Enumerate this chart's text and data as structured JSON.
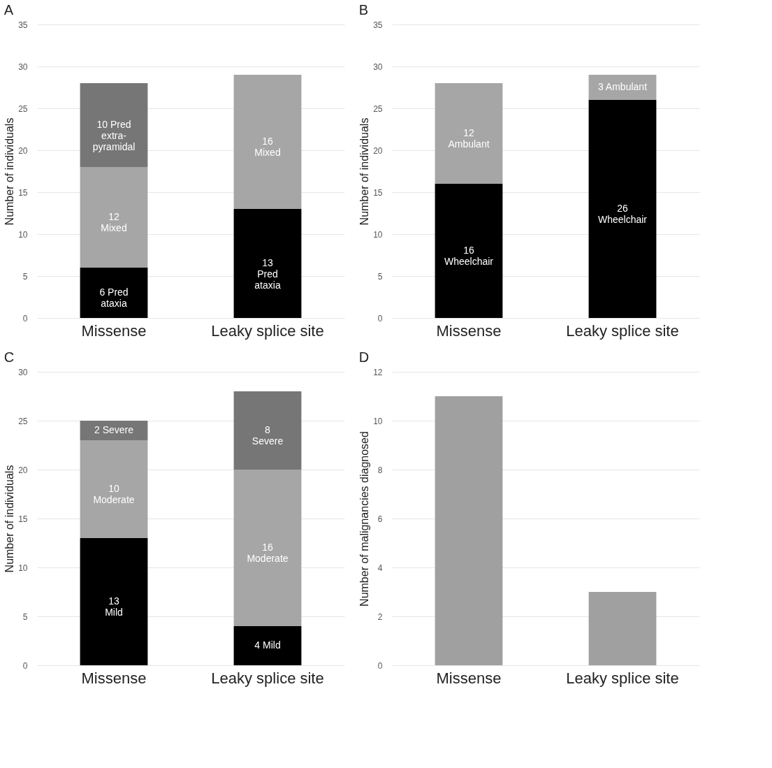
{
  "chart_data": [
    {
      "type": "bar",
      "title": "A",
      "stacked": true,
      "categories": [
        "Missense",
        "Leaky splice site"
      ],
      "ylabel": "Number of individuals",
      "ylim": [
        0,
        35
      ],
      "yticks": [
        0,
        5,
        10,
        15,
        20,
        25,
        30,
        35
      ],
      "grid": "y",
      "series": [
        {
          "color": "#000000",
          "values": [
            6,
            13
          ],
          "value_labels": [
            "6 Pred\nataxia",
            "13\nPred\nataxia"
          ]
        },
        {
          "color": "#a6a6a6",
          "values": [
            12,
            16
          ],
          "value_labels": [
            "12\nMixed",
            "16\nMixed"
          ]
        },
        {
          "color": "#767676",
          "values": [
            10,
            null
          ],
          "value_labels": [
            "10 Pred\nextra-\npyramidal",
            null
          ]
        }
      ]
    },
    {
      "type": "bar",
      "title": "B",
      "stacked": true,
      "categories": [
        "Missense",
        "Leaky splice site"
      ],
      "ylabel": "Number of individuals",
      "ylim": [
        0,
        35
      ],
      "yticks": [
        0,
        5,
        10,
        15,
        20,
        25,
        30,
        35
      ],
      "grid": "y",
      "series": [
        {
          "color": "#000000",
          "values": [
            16,
            26
          ],
          "value_labels": [
            "16\nWheelchair",
            "26\nWheelchair"
          ]
        },
        {
          "color": "#a6a6a6",
          "values": [
            12,
            3
          ],
          "value_labels": [
            "12\nAmbulant",
            "3 Ambulant"
          ]
        }
      ]
    },
    {
      "type": "bar",
      "title": "C",
      "stacked": true,
      "categories": [
        "Missense",
        "Leaky splice site"
      ],
      "ylabel": "Number of individuals",
      "ylim": [
        0,
        30
      ],
      "yticks": [
        0,
        5,
        10,
        15,
        20,
        25,
        30
      ],
      "grid": "y",
      "series": [
        {
          "color": "#000000",
          "values": [
            13,
            4
          ],
          "value_labels": [
            "13\nMild",
            "4 Mild"
          ]
        },
        {
          "color": "#a6a6a6",
          "values": [
            10,
            16
          ],
          "value_labels": [
            "10\nModerate",
            "16\nModerate"
          ]
        },
        {
          "color": "#767676",
          "values": [
            2,
            8
          ],
          "value_labels": [
            "2 Severe",
            "8\nSevere"
          ]
        }
      ]
    },
    {
      "type": "bar",
      "title": "D",
      "categories": [
        "Missense",
        "Leaky splice site"
      ],
      "ylabel": "Number of malignancies diagnosed",
      "ylim": [
        0,
        12
      ],
      "yticks": [
        0,
        2,
        4,
        6,
        8,
        10,
        12
      ],
      "grid": "y",
      "series": [
        {
          "color": "#a0a0a0",
          "values": [
            11,
            3
          ]
        }
      ]
    }
  ]
}
